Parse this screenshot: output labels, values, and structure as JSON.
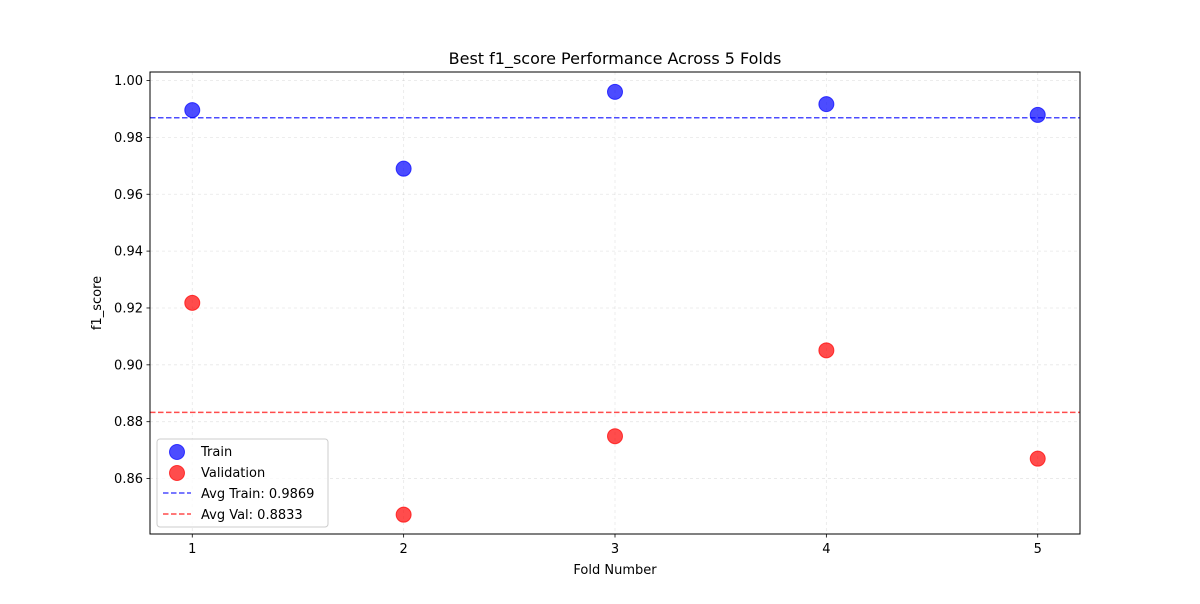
{
  "chart_data": {
    "type": "scatter",
    "title": "Best f1_score Performance Across 5 Folds",
    "xlabel": "Fold Number",
    "ylabel": "f1_score",
    "xlim": [
      0.8,
      5.2
    ],
    "ylim": [
      0.8405,
      1.003
    ],
    "xticks": [
      1,
      2,
      3,
      4,
      5
    ],
    "yticks": [
      0.86,
      0.88,
      0.9,
      0.92,
      0.94,
      0.96,
      0.98,
      1.0
    ],
    "grid": true,
    "series": [
      {
        "name": "Train",
        "color": "#0000ff",
        "alpha": 0.7,
        "x": [
          1,
          2,
          3,
          4,
          5
        ],
        "y": [
          0.9896,
          0.969,
          0.996,
          0.9917,
          0.9879
        ]
      },
      {
        "name": "Validation",
        "color": "#ff0000",
        "alpha": 0.7,
        "x": [
          1,
          2,
          3,
          4,
          5
        ],
        "y": [
          0.9218,
          0.8473,
          0.8749,
          0.9051,
          0.867
        ]
      }
    ],
    "reference_lines": [
      {
        "name": "Avg Train: 0.9869",
        "value": 0.9869,
        "color": "#0000ff",
        "style": "dashed"
      },
      {
        "name": "Avg Val: 0.8833",
        "value": 0.8833,
        "color": "#ff0000",
        "style": "dashed"
      }
    ],
    "legend": {
      "position": "lower-left"
    }
  }
}
